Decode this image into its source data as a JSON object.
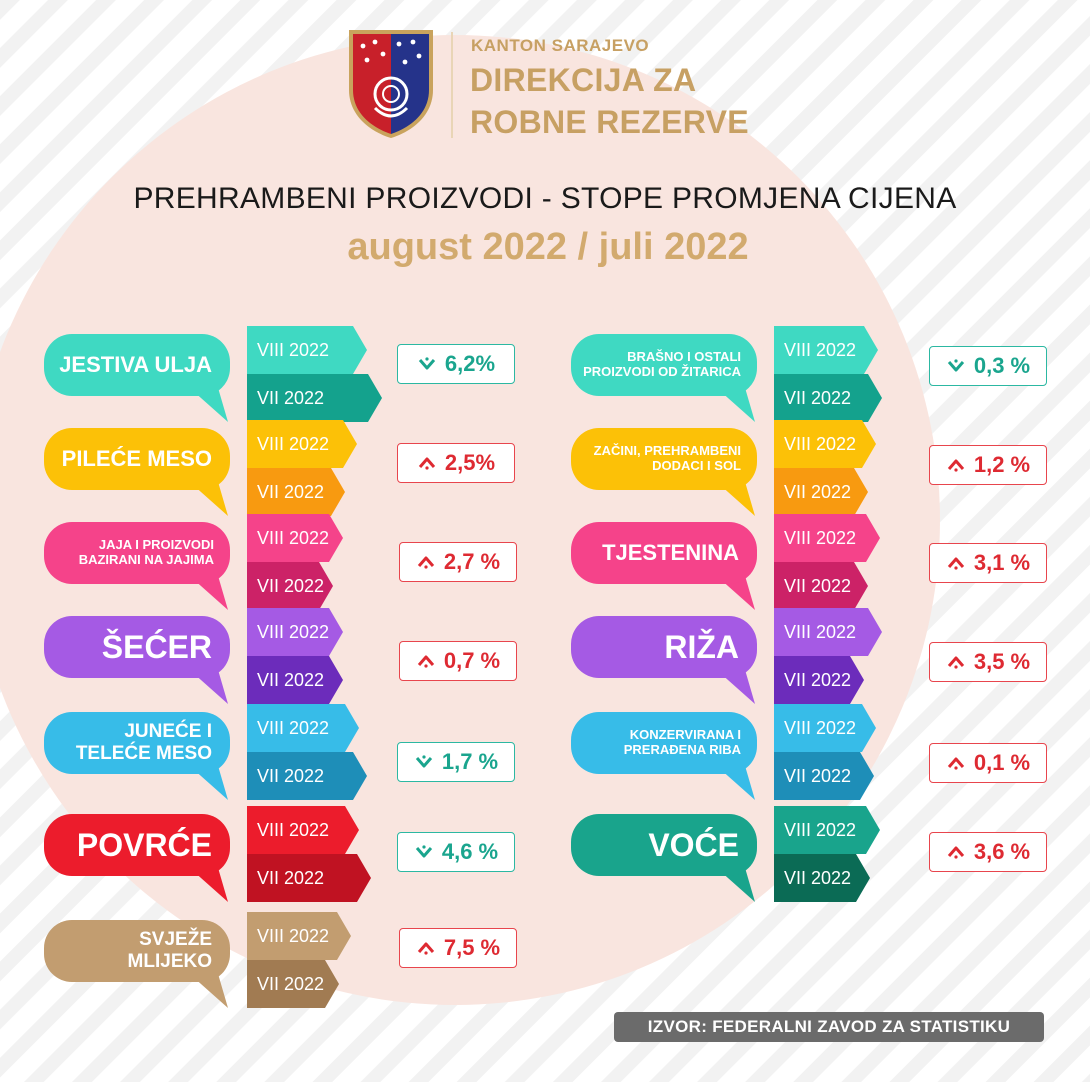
{
  "header": {
    "org_small": "KANTON SARAJEVO",
    "org_line1": "DIREKCIJA ZA",
    "org_line2": "ROBNE REZERVE",
    "title": "PREHRAMBENI PROIZVODI - STOPE PROMJENA CIJENA",
    "subtitle": "august 2022 / juli 2022"
  },
  "labels": {
    "current": "VIII 2022",
    "previous": "VII 2022"
  },
  "items": [
    {
      "name": "JESTIVA ULJA",
      "change": "6,2%",
      "direction": "down",
      "color": "#3fd9c2",
      "dark": "#14a28d"
    },
    {
      "name": "PILEĆE MESO",
      "change": "2,5%",
      "direction": "up",
      "color": "#fcc107",
      "dark": "#f89a10"
    },
    {
      "name": "JAJA I PROIZVODI\nBAZIRANI NA JAJIMA",
      "change": "2,7 %",
      "direction": "up",
      "color": "#f5438a",
      "dark": "#cc2267"
    },
    {
      "name": "ŠEĆER",
      "change": "0,7 %",
      "direction": "up",
      "color": "#a55ae4",
      "dark": "#6c2cbb"
    },
    {
      "name": "JUNEĆE I\nTELEĆE MESO",
      "change": "1,7 %",
      "direction": "down",
      "color": "#37bce8",
      "dark": "#1e8eb8"
    },
    {
      "name": "POVRĆE",
      "change": "4,6 %",
      "direction": "down",
      "color": "#ec1c2c",
      "dark": "#c01222"
    },
    {
      "name": "SVJEŽE\nMLIJEKO",
      "change": "7,5 %",
      "direction": "up",
      "color": "#c29d70",
      "dark": "#a17b52"
    },
    {
      "name": "BRAŠNO I OSTALI\nPROIZVODI OD ŽITARICA",
      "change": "0,3 %",
      "direction": "down",
      "color": "#3fd9c2",
      "dark": "#14a28d"
    },
    {
      "name": "ZAČINI, PREHRAMBENI\nDODACI I SOL",
      "change": "1,2 %",
      "direction": "up",
      "color": "#fcc107",
      "dark": "#f89a10"
    },
    {
      "name": "TJESTENINA",
      "change": "3,1 %",
      "direction": "up",
      "color": "#f5438a",
      "dark": "#cc2267"
    },
    {
      "name": "RIŽA",
      "change": "3,5 %",
      "direction": "up",
      "color": "#a55ae4",
      "dark": "#6c2cbb"
    },
    {
      "name": "KONZERVIRANA I\nPRERAĐENA RIBA",
      "change": "0,1 %",
      "direction": "up",
      "color": "#37bce8",
      "dark": "#1e8eb8"
    },
    {
      "name": "VOĆE",
      "change": "3,6 %",
      "direction": "up",
      "color": "#19a48c",
      "dark": "#0b6b55"
    }
  ],
  "source": "IZVOR: FEDERALNI ZAVOD ZA STATISTIKU"
}
